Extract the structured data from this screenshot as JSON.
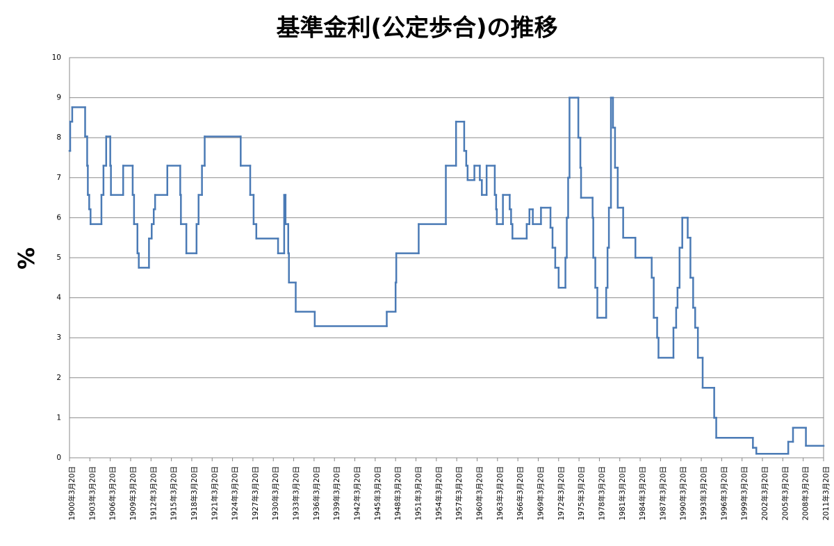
{
  "chart_data": {
    "type": "line",
    "title": "基準金利(公定歩合)の推移",
    "y_label": "%",
    "step": "post",
    "grid": true,
    "series": [
      {
        "color": "#4a7ab5",
        "x": [
          1900.2,
          1900.3,
          1900.6,
          1902.5,
          1902.8,
          1902.9,
          1903.1,
          1903.3,
          1904.9,
          1905.2,
          1905.6,
          1906.2,
          1906.3,
          1908.1,
          1909.5,
          1909.7,
          1910.2,
          1910.4,
          1911.9,
          1912.3,
          1912.6,
          1912.8,
          1914.6,
          1916.5,
          1916.6,
          1917.4,
          1918.9,
          1919.2,
          1919.7,
          1920.1,
          1925.4,
          1926.8,
          1927.3,
          1927.7,
          1930.9,
          1931.8,
          1932.0,
          1932.4,
          1932.5,
          1933.5,
          1936.3,
          1946.9,
          1948.2,
          1948.3,
          1951.6,
          1955.6,
          1957.1,
          1958.3,
          1958.6,
          1958.8,
          1959.8,
          1960.6,
          1960.9,
          1961.6,
          1962.8,
          1963.0,
          1963.1,
          1964.0,
          1965.0,
          1965.2,
          1965.4,
          1967.5,
          1967.9,
          1968.4,
          1969.6,
          1971.0,
          1971.3,
          1971.7,
          1972.2,
          1973.2,
          1973.4,
          1973.6,
          1973.8,
          1975.1,
          1975.4,
          1975.5,
          1977.2,
          1977.3,
          1977.6,
          1977.9,
          1979.2,
          1979.4,
          1979.6,
          1979.9,
          1980.2,
          1980.5,
          1980.9,
          1981.7,
          1983.5,
          1985.9,
          1986.2,
          1986.7,
          1986.9,
          1989.1,
          1989.5,
          1989.7,
          1990.0,
          1990.4,
          1991.2,
          1991.6,
          1992.0,
          1992.3,
          1992.7,
          1993.4,
          1995.1,
          1995.4,
          2000.8,
          2001.3,
          2006.0,
          2006.7,
          2008.6
        ],
        "values": [
          7.67,
          8.4,
          8.76,
          8.03,
          7.3,
          6.57,
          6.21,
          5.84,
          6.57,
          7.3,
          8.03,
          7.3,
          6.57,
          7.3,
          6.57,
          5.84,
          5.11,
          4.75,
          5.48,
          5.84,
          6.21,
          6.57,
          7.3,
          6.57,
          5.84,
          5.11,
          5.84,
          6.57,
          7.3,
          8.03,
          7.3,
          6.57,
          5.84,
          5.48,
          5.11,
          6.57,
          5.84,
          5.11,
          4.38,
          3.65,
          3.29,
          3.65,
          4.38,
          5.11,
          5.84,
          7.3,
          8.4,
          7.67,
          7.3,
          6.94,
          7.3,
          6.94,
          6.57,
          7.3,
          6.57,
          6.21,
          5.84,
          6.57,
          6.21,
          5.84,
          5.48,
          5.84,
          6.21,
          5.84,
          6.25,
          5.75,
          5.25,
          4.75,
          4.25,
          5,
          6,
          7,
          9,
          8,
          7.25,
          6.5,
          6,
          5,
          4.25,
          3.5,
          4.25,
          5.25,
          6.25,
          9,
          8.25,
          7.25,
          6.25,
          5.5,
          5,
          4.5,
          3.5,
          3,
          2.5,
          3.25,
          3.75,
          4.25,
          5.25,
          6,
          5.5,
          4.5,
          3.75,
          3.25,
          2.5,
          1.75,
          1,
          0.5,
          0.25,
          0.1,
          0.4,
          0.75,
          0.3
        ]
      }
    ],
    "xlim": [
      1900.2,
      2011.2
    ],
    "ylim": [
      0,
      10
    ],
    "yticks": [
      0,
      1,
      2,
      3,
      4,
      5,
      6,
      7,
      8,
      9,
      10
    ],
    "xticks": [
      {
        "value": 1900.2,
        "label": "1900年3月20日"
      },
      {
        "value": 1903.2,
        "label": "1903年3月20日"
      },
      {
        "value": 1906.2,
        "label": "1906年3月20日"
      },
      {
        "value": 1909.2,
        "label": "1909年3月20日"
      },
      {
        "value": 1912.2,
        "label": "1912年3月20日"
      },
      {
        "value": 1915.2,
        "label": "1915年3月20日"
      },
      {
        "value": 1918.2,
        "label": "1918年3月20日"
      },
      {
        "value": 1921.2,
        "label": "1921年3月20日"
      },
      {
        "value": 1924.2,
        "label": "1924年3月20日"
      },
      {
        "value": 1927.2,
        "label": "1927年3月20日"
      },
      {
        "value": 1930.2,
        "label": "1930年3月20日"
      },
      {
        "value": 1933.2,
        "label": "1933年3月20日"
      },
      {
        "value": 1936.2,
        "label": "1936年3月20日"
      },
      {
        "value": 1939.2,
        "label": "1939年3月20日"
      },
      {
        "value": 1942.2,
        "label": "1942年3月20日"
      },
      {
        "value": 1945.2,
        "label": "1945年3月20日"
      },
      {
        "value": 1948.2,
        "label": "1948年3月20日"
      },
      {
        "value": 1951.2,
        "label": "1951年3月20日"
      },
      {
        "value": 1954.2,
        "label": "1954年3月20日"
      },
      {
        "value": 1957.2,
        "label": "1957年3月20日"
      },
      {
        "value": 1960.2,
        "label": "1960年3月20日"
      },
      {
        "value": 1963.2,
        "label": "1963年3月20日"
      },
      {
        "value": 1966.2,
        "label": "1966年3月20日"
      },
      {
        "value": 1969.2,
        "label": "1969年3月20日"
      },
      {
        "value": 1972.2,
        "label": "1972年3月20日"
      },
      {
        "value": 1975.2,
        "label": "1975年3月20日"
      },
      {
        "value": 1978.2,
        "label": "1978年3月20日"
      },
      {
        "value": 1981.2,
        "label": "1981年3月20日"
      },
      {
        "value": 1984.2,
        "label": "1984年3月20日"
      },
      {
        "value": 1987.2,
        "label": "1987年3月20日"
      },
      {
        "value": 1990.2,
        "label": "1990年3月20日"
      },
      {
        "value": 1993.2,
        "label": "1993年3月20日"
      },
      {
        "value": 1996.2,
        "label": "1996年3月20日"
      },
      {
        "value": 1999.2,
        "label": "1999年3月20日"
      },
      {
        "value": 2002.2,
        "label": "2002年3月20日"
      },
      {
        "value": 2005.2,
        "label": "2005年3月20日"
      },
      {
        "value": 2008.2,
        "label": "2008年3月20日"
      },
      {
        "value": 2011.2,
        "label": "2011年3月20日"
      }
    ]
  }
}
